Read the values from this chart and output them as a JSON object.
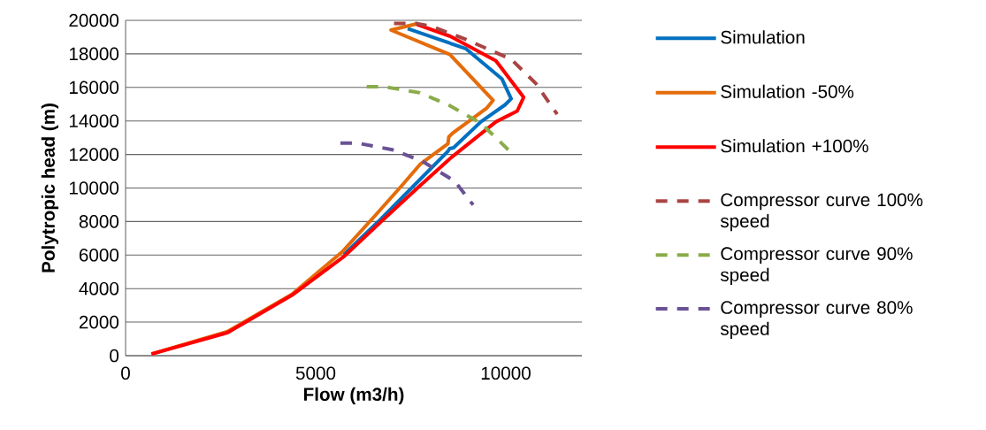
{
  "chart_data": {
    "type": "line",
    "xlabel": "Flow (m3/h)",
    "ylabel": "Polytropic head (m)",
    "xlim": [
      0,
      12000
    ],
    "ylim": [
      0,
      20000
    ],
    "xticks": [
      0,
      5000,
      10000
    ],
    "yticks": [
      0,
      2000,
      4000,
      6000,
      8000,
      10000,
      12000,
      14000,
      16000,
      18000,
      20000
    ],
    "grid": "y",
    "legend": "right",
    "marker": "none",
    "series": [
      {
        "name": "Simulation",
        "color": "#0070c0",
        "line_style": "solid",
        "x": [
          7420,
          8940,
          9900,
          10140,
          9980,
          9345,
          8625,
          8520,
          8480,
          7740,
          6700,
          5735
        ],
        "values": [
          19500,
          18320,
          16500,
          15320,
          14960,
          13950,
          12400,
          12350,
          12200,
          10500,
          8120,
          6020
        ]
      },
      {
        "name": "Simulation -50%",
        "color": "#e46c0a",
        "line_style": "solid",
        "x": [
          7650,
          6980,
          8530,
          9665,
          9500,
          8620,
          8500,
          8480,
          7740,
          7260,
          6540,
          5700,
          4370,
          2690,
          680
        ],
        "values": [
          19790,
          19420,
          17960,
          15230,
          14770,
          13310,
          13050,
          12650,
          11400,
          10130,
          8300,
          6200,
          3650,
          1450,
          100
        ]
      },
      {
        "name": "Simulation +100%",
        "color": "#ff0000",
        "line_style": "solid",
        "x": [
          7660,
          8540,
          9740,
          10470,
          10300,
          9740,
          8540,
          7740,
          6700,
          5735,
          4370,
          2690,
          680
        ],
        "values": [
          19760,
          19050,
          17590,
          15410,
          14590,
          13950,
          11770,
          10130,
          7950,
          5900,
          3600,
          1380,
          100
        ]
      },
      {
        "name": "Compressor curve 100% speed",
        "color": "#a94442",
        "line_style": "dashed",
        "x": [
          7060,
          7660,
          8060,
          8940,
          10140,
          10790,
          11350
        ],
        "values": [
          19810,
          19810,
          19630,
          18870,
          17680,
          16230,
          14400
        ]
      },
      {
        "name": "Compressor curve 90% speed",
        "color": "#8aac4a",
        "line_style": "dashed",
        "x": [
          6340,
          6810,
          7740,
          8540,
          9345,
          10065
        ],
        "values": [
          16040,
          16040,
          15680,
          14900,
          13860,
          12280
        ]
      },
      {
        "name": "Compressor curve 80% speed",
        "color": "#6a5194",
        "line_style": "dashed",
        "x": [
          5650,
          6090,
          7020,
          7810,
          8660,
          9140
        ],
        "values": [
          12680,
          12680,
          12280,
          11590,
          10400,
          8990
        ]
      }
    ]
  }
}
